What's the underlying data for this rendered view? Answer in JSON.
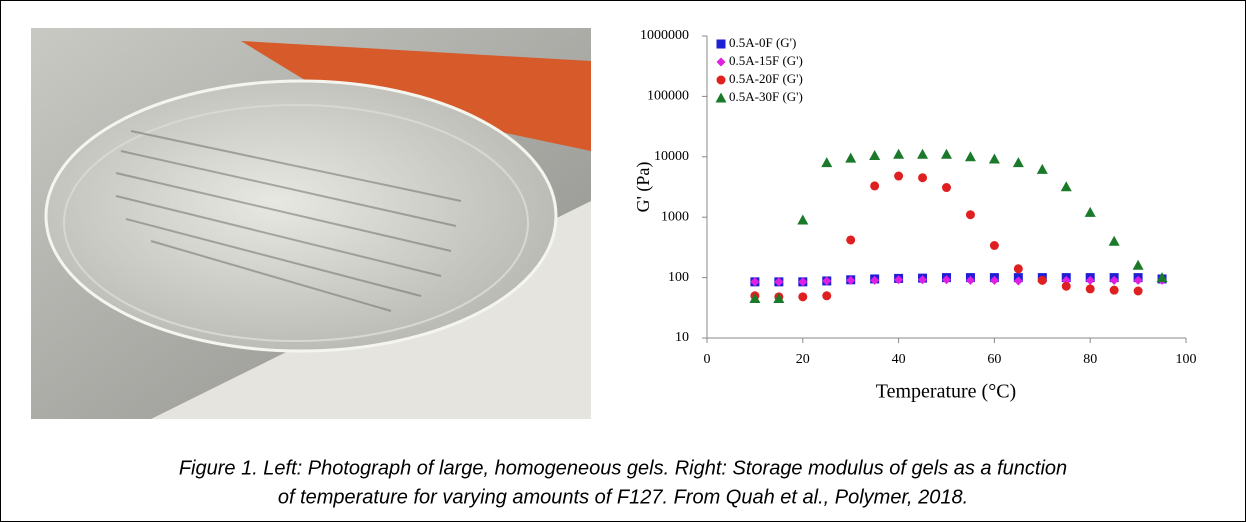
{
  "chart_data": {
    "type": "scatter",
    "ylabel": "G' (Pa)",
    "xlabel": "Temperature (°C)",
    "log_y": true,
    "xlim": [
      0,
      100
    ],
    "xticks": [
      0,
      20,
      40,
      60,
      80,
      100
    ],
    "ylim": [
      10,
      1000000
    ],
    "yticks": [
      10,
      100,
      1000,
      10000,
      100000,
      1000000
    ],
    "legend": "upper left",
    "series": [
      {
        "name": "0.5A-0F (G')",
        "color": "#1f1fd6",
        "marker": "square",
        "x": [
          10,
          15,
          20,
          25,
          30,
          35,
          40,
          45,
          50,
          55,
          60,
          65,
          70,
          75,
          80,
          85,
          90,
          95
        ],
        "values": [
          85,
          85,
          85,
          88,
          92,
          95,
          97,
          98,
          100,
          100,
          100,
          100,
          100,
          100,
          100,
          100,
          100,
          95
        ]
      },
      {
        "name": "0.5A-15F (G')",
        "color": "#e020e0",
        "marker": "diamond",
        "x": [
          10,
          15,
          20,
          25,
          30,
          35,
          40,
          45,
          50,
          55,
          60,
          65,
          70,
          75,
          80,
          85,
          90,
          95
        ],
        "values": [
          85,
          85,
          85,
          88,
          90,
          90,
          92,
          92,
          92,
          90,
          90,
          88,
          90,
          90,
          90,
          90,
          90,
          90
        ]
      },
      {
        "name": "0.5A-20F (G')",
        "color": "#e02020",
        "marker": "circle",
        "x": [
          10,
          15,
          20,
          25,
          30,
          35,
          40,
          45,
          50,
          55,
          60,
          65,
          70,
          75,
          80,
          85,
          90
        ],
        "values": [
          50,
          48,
          48,
          50,
          420,
          3300,
          4800,
          4500,
          3100,
          1100,
          340,
          140,
          90,
          72,
          65,
          62,
          60
        ]
      },
      {
        "name": "0.5A-30F (G')",
        "color": "#1a7a2a",
        "marker": "triangle",
        "x": [
          10,
          15,
          20,
          25,
          30,
          35,
          40,
          45,
          50,
          55,
          60,
          65,
          70,
          75,
          80,
          85,
          90,
          95
        ],
        "values": [
          45,
          45,
          900,
          8000,
          9500,
          10500,
          11000,
          11000,
          11000,
          10000,
          9200,
          8000,
          6200,
          3200,
          1200,
          400,
          160,
          100
        ]
      }
    ]
  },
  "caption": [
    "Figure 1. Left: Photograph of large, homogeneous gels. Right: Storage modulus of gels as a function",
    "of temperature for varying amounts of F127. From Quah et al., Polymer, 2018."
  ]
}
